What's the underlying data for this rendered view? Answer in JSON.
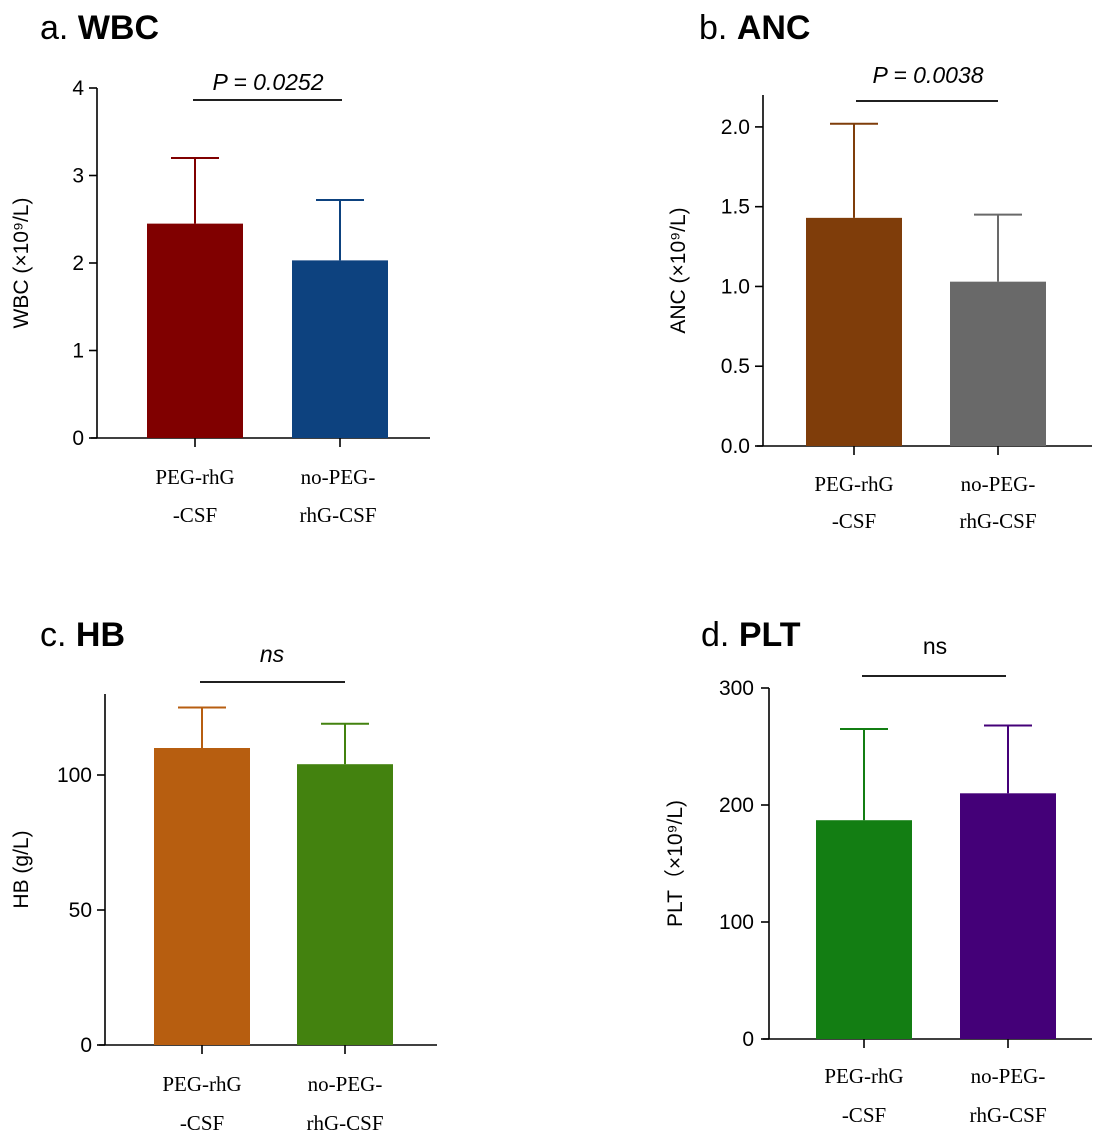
{
  "chart_data": [
    {
      "type": "bar",
      "panel_letter": "a.",
      "title": "WBC",
      "ylabel": "WBC (×10⁹/L)",
      "ylim": [
        0,
        4
      ],
      "yticks": [
        "0",
        "1",
        "2",
        "3",
        "4"
      ],
      "categories": [
        [
          "PEG-rhG",
          "-CSF"
        ],
        [
          "no-PEG-",
          "rhG-CSF"
        ]
      ],
      "values": [
        2.45,
        2.03
      ],
      "errors_upper": [
        3.2,
        2.72
      ],
      "colors": [
        "#800000",
        "#0d427f"
      ],
      "significance": "P = 0.0252",
      "significance_italic": true
    },
    {
      "type": "bar",
      "panel_letter": "b.",
      "title": "ANC",
      "ylabel": "ANC (×10⁹/L)",
      "ylim": [
        0,
        2.2
      ],
      "yticks": [
        "0.0",
        "0.5",
        "1.0",
        "1.5",
        "2.0"
      ],
      "categories": [
        [
          "PEG-rhG",
          "-CSF"
        ],
        [
          "no-PEG-",
          "rhG-CSF"
        ]
      ],
      "values": [
        1.43,
        1.03
      ],
      "errors_upper": [
        2.02,
        1.45
      ],
      "colors": [
        "#7f3d0a",
        "#696969"
      ],
      "significance": "P = 0.0038",
      "significance_italic": true
    },
    {
      "type": "bar",
      "panel_letter": "c.",
      "title": "HB",
      "ylabel": "HB (g/L)",
      "ylim": [
        0,
        130
      ],
      "yticks": [
        "0",
        "50",
        "100"
      ],
      "categories": [
        [
          "PEG-rhG",
          "-CSF"
        ],
        [
          "no-PEG-",
          "rhG-CSF"
        ]
      ],
      "values": [
        110,
        104
      ],
      "errors_upper": [
        125,
        119
      ],
      "colors": [
        "#b75e10",
        "#43820f"
      ],
      "significance": "ns",
      "significance_italic": true
    },
    {
      "type": "bar",
      "panel_letter": "d.",
      "title": "PLT",
      "ylabel": "PLT（×10⁹/L)",
      "ylim": [
        0,
        300
      ],
      "yticks": [
        "0",
        "100",
        "200",
        "300"
      ],
      "categories": [
        [
          "PEG-rhG",
          "-CSF"
        ],
        [
          "no-PEG-",
          "rhG-CSF"
        ]
      ],
      "values": [
        187,
        210
      ],
      "errors_upper": [
        265,
        268
      ],
      "colors": [
        "#137e13",
        "#440078"
      ],
      "significance": "ns",
      "significance_italic": false
    }
  ]
}
